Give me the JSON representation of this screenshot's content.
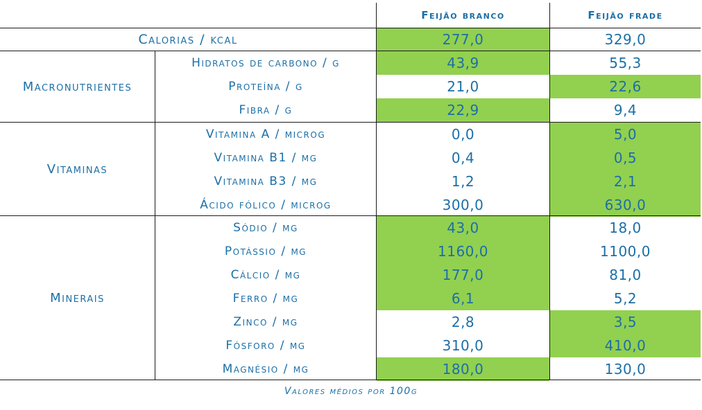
{
  "columns": [
    "Feijão branco",
    "Feijão frade"
  ],
  "calorias": {
    "label": "Calorias / kcal",
    "values": [
      "277,0",
      "329,0"
    ],
    "highlight": [
      true,
      false
    ]
  },
  "groups": [
    {
      "name": "Macronutrientes",
      "rows": [
        {
          "label": "Hidratos de carbono / g",
          "values": [
            "43,9",
            "55,3"
          ],
          "highlight": [
            true,
            false
          ]
        },
        {
          "label": "Proteína / g",
          "values": [
            "21,0",
            "22,6"
          ],
          "highlight": [
            false,
            true
          ]
        },
        {
          "label": "Fibra / g",
          "values": [
            "22,9",
            "9,4"
          ],
          "highlight": [
            true,
            false
          ]
        }
      ]
    },
    {
      "name": "Vitaminas",
      "rows": [
        {
          "label": "Vitamina A / microg",
          "values": [
            "0,0",
            "5,0"
          ],
          "highlight": [
            false,
            true
          ]
        },
        {
          "label": "Vitamina B1 / mg",
          "values": [
            "0,4",
            "0,5"
          ],
          "highlight": [
            false,
            true
          ]
        },
        {
          "label": "Vitamina B3 / mg",
          "values": [
            "1,2",
            "2,1"
          ],
          "highlight": [
            false,
            true
          ]
        },
        {
          "label": "Ácido fólico / microg",
          "values": [
            "300,0",
            "630,0"
          ],
          "highlight": [
            false,
            true
          ]
        }
      ]
    },
    {
      "name": "Minerais",
      "rows": [
        {
          "label": "Sódio / mg",
          "values": [
            "43,0",
            "18,0"
          ],
          "highlight": [
            true,
            false
          ]
        },
        {
          "label": "Potássio / mg",
          "values": [
            "1160,0",
            "1100,0"
          ],
          "highlight": [
            true,
            false
          ]
        },
        {
          "label": "Cálcio / mg",
          "values": [
            "177,0",
            "81,0"
          ],
          "highlight": [
            true,
            false
          ]
        },
        {
          "label": "Ferro / mg",
          "values": [
            "6,1",
            "5,2"
          ],
          "highlight": [
            true,
            false
          ]
        },
        {
          "label": "Zinco / mg",
          "values": [
            "2,8",
            "3,5"
          ],
          "highlight": [
            false,
            true
          ]
        },
        {
          "label": "Fósforo / mg",
          "values": [
            "310,0",
            "410,0"
          ],
          "highlight": [
            false,
            true
          ]
        },
        {
          "label": "Magnésio / mg",
          "values": [
            "180,0",
            "130,0"
          ],
          "highlight": [
            true,
            false
          ]
        }
      ]
    }
  ],
  "footnote": "Valores médios por 100g",
  "colors": {
    "highlight": "#92d050",
    "text": "#1c6fa6",
    "lines": "#1a1a1a"
  }
}
